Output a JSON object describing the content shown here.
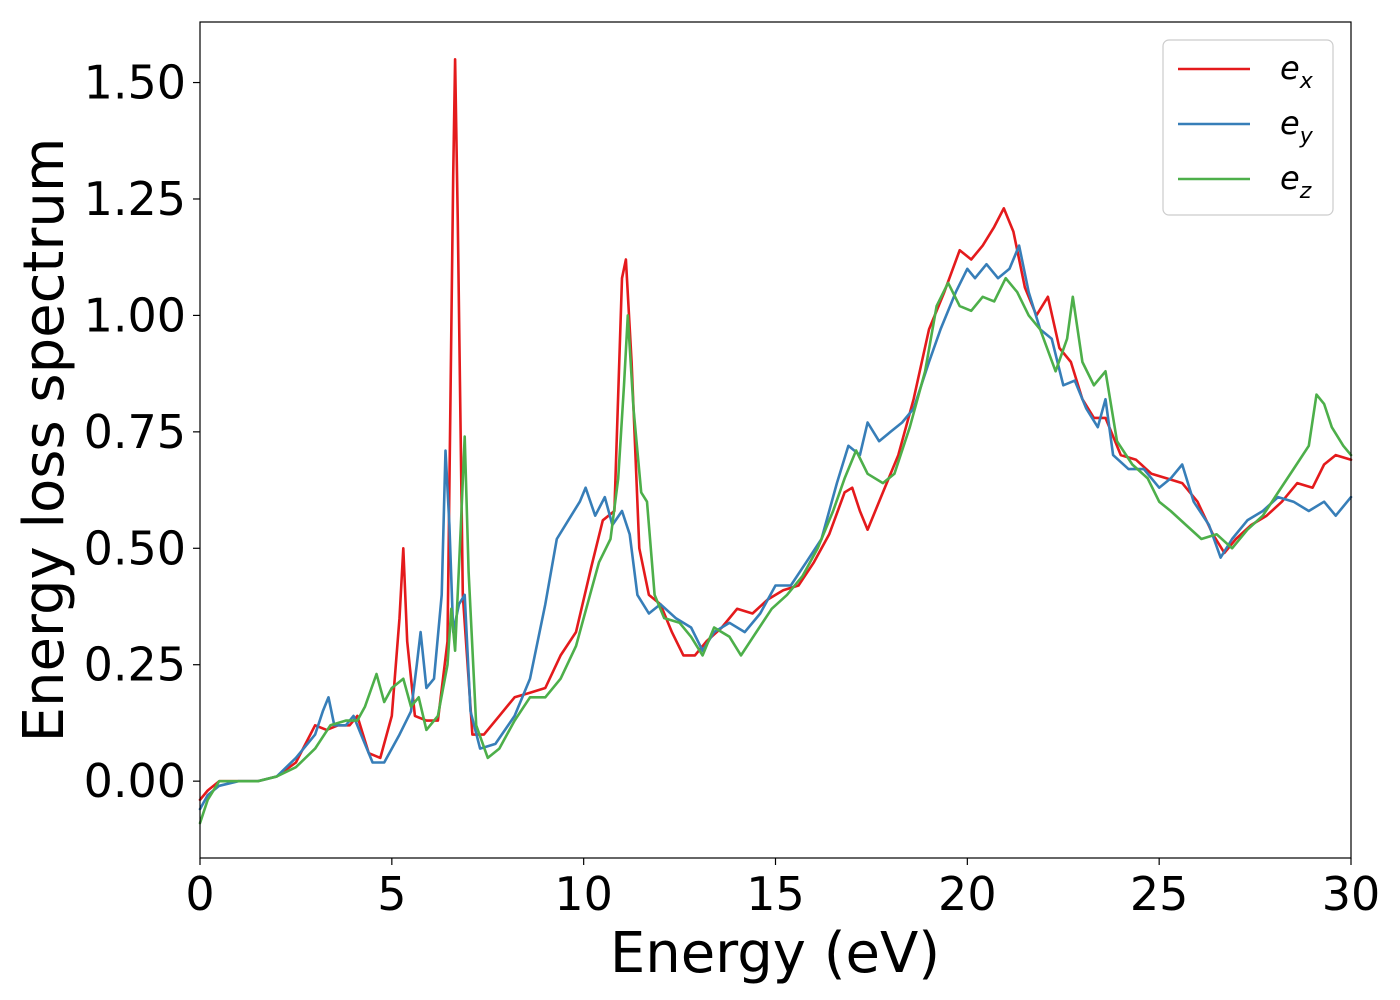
{
  "chart_data": {
    "type": "line",
    "title": "",
    "xlabel": "Energy (eV)",
    "ylabel": "Energy loss spectrum",
    "xlim": [
      0,
      30
    ],
    "ylim": [
      -0.165,
      1.63
    ],
    "xticks": [
      0,
      5,
      10,
      15,
      20,
      25,
      30
    ],
    "xtick_labels": [
      "0",
      "5",
      "10",
      "15",
      "20",
      "25",
      "30"
    ],
    "yticks": [
      0,
      0.25,
      0.5,
      0.75,
      1.0,
      1.25,
      1.5
    ],
    "ytick_labels": [
      "0.00",
      "0.25",
      "0.50",
      "0.75",
      "1.00",
      "1.25",
      "1.50"
    ],
    "grid": false,
    "legend_position": "top-right",
    "series": [
      {
        "name": "e",
        "subscript": "x",
        "color": "#e41a1c",
        "points": [
          [
            0,
            -0.04
          ],
          [
            0.2,
            -0.02
          ],
          [
            0.5,
            0.0
          ],
          [
            1.0,
            0.0
          ],
          [
            1.5,
            0.0
          ],
          [
            2.0,
            0.01
          ],
          [
            2.5,
            0.04
          ],
          [
            3.0,
            0.12
          ],
          [
            3.3,
            0.11
          ],
          [
            3.6,
            0.12
          ],
          [
            3.9,
            0.12
          ],
          [
            4.1,
            0.14
          ],
          [
            4.4,
            0.06
          ],
          [
            4.7,
            0.05
          ],
          [
            5.0,
            0.14
          ],
          [
            5.2,
            0.35
          ],
          [
            5.3,
            0.5
          ],
          [
            5.4,
            0.3
          ],
          [
            5.6,
            0.14
          ],
          [
            5.9,
            0.13
          ],
          [
            6.2,
            0.13
          ],
          [
            6.45,
            0.3
          ],
          [
            6.6,
            1.3
          ],
          [
            6.65,
            1.55
          ],
          [
            6.72,
            1.2
          ],
          [
            6.85,
            0.4
          ],
          [
            7.1,
            0.1
          ],
          [
            7.4,
            0.1
          ],
          [
            7.8,
            0.14
          ],
          [
            8.2,
            0.18
          ],
          [
            8.6,
            0.19
          ],
          [
            9.0,
            0.2
          ],
          [
            9.4,
            0.27
          ],
          [
            9.8,
            0.32
          ],
          [
            10.2,
            0.46
          ],
          [
            10.5,
            0.56
          ],
          [
            10.8,
            0.58
          ],
          [
            11.0,
            1.08
          ],
          [
            11.1,
            1.12
          ],
          [
            11.25,
            0.9
          ],
          [
            11.45,
            0.5
          ],
          [
            11.7,
            0.4
          ],
          [
            12.0,
            0.38
          ],
          [
            12.3,
            0.32
          ],
          [
            12.6,
            0.27
          ],
          [
            12.9,
            0.27
          ],
          [
            13.2,
            0.3
          ],
          [
            13.6,
            0.33
          ],
          [
            14.0,
            0.37
          ],
          [
            14.4,
            0.36
          ],
          [
            14.8,
            0.39
          ],
          [
            15.2,
            0.41
          ],
          [
            15.6,
            0.42
          ],
          [
            16.0,
            0.47
          ],
          [
            16.4,
            0.53
          ],
          [
            16.8,
            0.62
          ],
          [
            17.0,
            0.63
          ],
          [
            17.2,
            0.58
          ],
          [
            17.4,
            0.54
          ],
          [
            17.8,
            0.62
          ],
          [
            18.2,
            0.7
          ],
          [
            18.6,
            0.82
          ],
          [
            19.0,
            0.97
          ],
          [
            19.4,
            1.05
          ],
          [
            19.8,
            1.14
          ],
          [
            20.1,
            1.12
          ],
          [
            20.4,
            1.15
          ],
          [
            20.7,
            1.19
          ],
          [
            20.95,
            1.23
          ],
          [
            21.2,
            1.18
          ],
          [
            21.5,
            1.06
          ],
          [
            21.8,
            1.0
          ],
          [
            22.1,
            1.04
          ],
          [
            22.4,
            0.93
          ],
          [
            22.7,
            0.9
          ],
          [
            23.0,
            0.82
          ],
          [
            23.3,
            0.78
          ],
          [
            23.6,
            0.78
          ],
          [
            24.0,
            0.7
          ],
          [
            24.4,
            0.69
          ],
          [
            24.8,
            0.66
          ],
          [
            25.2,
            0.65
          ],
          [
            25.6,
            0.64
          ],
          [
            26.0,
            0.6
          ],
          [
            26.4,
            0.53
          ],
          [
            26.7,
            0.49
          ],
          [
            27.0,
            0.52
          ],
          [
            27.4,
            0.55
          ],
          [
            27.8,
            0.57
          ],
          [
            28.2,
            0.6
          ],
          [
            28.6,
            0.64
          ],
          [
            29.0,
            0.63
          ],
          [
            29.3,
            0.68
          ],
          [
            29.6,
            0.7
          ],
          [
            30.0,
            0.69
          ]
        ]
      },
      {
        "name": "e",
        "subscript": "y",
        "color": "#377eb8",
        "points": [
          [
            0,
            -0.06
          ],
          [
            0.2,
            -0.03
          ],
          [
            0.5,
            -0.01
          ],
          [
            1.0,
            0.0
          ],
          [
            1.5,
            0.0
          ],
          [
            2.0,
            0.01
          ],
          [
            2.5,
            0.05
          ],
          [
            3.0,
            0.1
          ],
          [
            3.2,
            0.15
          ],
          [
            3.35,
            0.18
          ],
          [
            3.5,
            0.12
          ],
          [
            3.8,
            0.12
          ],
          [
            4.0,
            0.14
          ],
          [
            4.2,
            0.1
          ],
          [
            4.5,
            0.04
          ],
          [
            4.8,
            0.04
          ],
          [
            5.2,
            0.1
          ],
          [
            5.5,
            0.15
          ],
          [
            5.65,
            0.25
          ],
          [
            5.75,
            0.32
          ],
          [
            5.9,
            0.2
          ],
          [
            6.1,
            0.22
          ],
          [
            6.3,
            0.4
          ],
          [
            6.4,
            0.71
          ],
          [
            6.5,
            0.55
          ],
          [
            6.6,
            0.32
          ],
          [
            6.75,
            0.38
          ],
          [
            6.9,
            0.4
          ],
          [
            7.05,
            0.15
          ],
          [
            7.3,
            0.07
          ],
          [
            7.7,
            0.08
          ],
          [
            8.2,
            0.14
          ],
          [
            8.6,
            0.22
          ],
          [
            9.0,
            0.38
          ],
          [
            9.3,
            0.52
          ],
          [
            9.6,
            0.56
          ],
          [
            9.9,
            0.6
          ],
          [
            10.05,
            0.63
          ],
          [
            10.3,
            0.57
          ],
          [
            10.55,
            0.61
          ],
          [
            10.75,
            0.55
          ],
          [
            11.0,
            0.58
          ],
          [
            11.2,
            0.53
          ],
          [
            11.4,
            0.4
          ],
          [
            11.7,
            0.36
          ],
          [
            12.0,
            0.38
          ],
          [
            12.4,
            0.35
          ],
          [
            12.8,
            0.33
          ],
          [
            13.1,
            0.28
          ],
          [
            13.4,
            0.32
          ],
          [
            13.8,
            0.34
          ],
          [
            14.2,
            0.32
          ],
          [
            14.6,
            0.36
          ],
          [
            15.0,
            0.42
          ],
          [
            15.4,
            0.42
          ],
          [
            15.8,
            0.47
          ],
          [
            16.2,
            0.52
          ],
          [
            16.6,
            0.64
          ],
          [
            16.9,
            0.72
          ],
          [
            17.2,
            0.7
          ],
          [
            17.4,
            0.77
          ],
          [
            17.7,
            0.73
          ],
          [
            18.0,
            0.75
          ],
          [
            18.3,
            0.77
          ],
          [
            18.6,
            0.8
          ],
          [
            19.0,
            0.9
          ],
          [
            19.3,
            0.97
          ],
          [
            19.7,
            1.05
          ],
          [
            20.0,
            1.1
          ],
          [
            20.2,
            1.08
          ],
          [
            20.5,
            1.11
          ],
          [
            20.8,
            1.08
          ],
          [
            21.1,
            1.1
          ],
          [
            21.35,
            1.15
          ],
          [
            21.6,
            1.05
          ],
          [
            21.9,
            0.97
          ],
          [
            22.2,
            0.95
          ],
          [
            22.5,
            0.85
          ],
          [
            22.8,
            0.86
          ],
          [
            23.1,
            0.8
          ],
          [
            23.4,
            0.76
          ],
          [
            23.6,
            0.82
          ],
          [
            23.8,
            0.7
          ],
          [
            24.2,
            0.67
          ],
          [
            24.6,
            0.67
          ],
          [
            25.0,
            0.63
          ],
          [
            25.3,
            0.65
          ],
          [
            25.6,
            0.68
          ],
          [
            25.9,
            0.6
          ],
          [
            26.3,
            0.55
          ],
          [
            26.6,
            0.48
          ],
          [
            26.9,
            0.52
          ],
          [
            27.3,
            0.56
          ],
          [
            27.7,
            0.58
          ],
          [
            28.1,
            0.61
          ],
          [
            28.5,
            0.6
          ],
          [
            28.9,
            0.58
          ],
          [
            29.3,
            0.6
          ],
          [
            29.6,
            0.57
          ],
          [
            30.0,
            0.61
          ]
        ]
      },
      {
        "name": "e",
        "subscript": "z",
        "color": "#4daf4a",
        "points": [
          [
            0,
            -0.09
          ],
          [
            0.2,
            -0.04
          ],
          [
            0.5,
            0.0
          ],
          [
            0.8,
            0.0
          ],
          [
            1.5,
            0.0
          ],
          [
            2.0,
            0.01
          ],
          [
            2.5,
            0.03
          ],
          [
            3.0,
            0.07
          ],
          [
            3.4,
            0.12
          ],
          [
            3.8,
            0.13
          ],
          [
            4.1,
            0.13
          ],
          [
            4.3,
            0.16
          ],
          [
            4.6,
            0.23
          ],
          [
            4.8,
            0.17
          ],
          [
            5.0,
            0.2
          ],
          [
            5.3,
            0.22
          ],
          [
            5.5,
            0.16
          ],
          [
            5.7,
            0.18
          ],
          [
            5.9,
            0.11
          ],
          [
            6.2,
            0.14
          ],
          [
            6.45,
            0.25
          ],
          [
            6.55,
            0.37
          ],
          [
            6.65,
            0.28
          ],
          [
            6.8,
            0.55
          ],
          [
            6.9,
            0.74
          ],
          [
            7.0,
            0.45
          ],
          [
            7.2,
            0.12
          ],
          [
            7.5,
            0.05
          ],
          [
            7.8,
            0.07
          ],
          [
            8.2,
            0.13
          ],
          [
            8.6,
            0.18
          ],
          [
            9.0,
            0.18
          ],
          [
            9.4,
            0.22
          ],
          [
            9.8,
            0.29
          ],
          [
            10.2,
            0.41
          ],
          [
            10.4,
            0.47
          ],
          [
            10.7,
            0.52
          ],
          [
            10.9,
            0.65
          ],
          [
            11.05,
            0.85
          ],
          [
            11.15,
            1.0
          ],
          [
            11.3,
            0.8
          ],
          [
            11.5,
            0.62
          ],
          [
            11.65,
            0.6
          ],
          [
            11.85,
            0.4
          ],
          [
            12.1,
            0.35
          ],
          [
            12.5,
            0.34
          ],
          [
            12.8,
            0.31
          ],
          [
            13.1,
            0.27
          ],
          [
            13.4,
            0.33
          ],
          [
            13.8,
            0.31
          ],
          [
            14.1,
            0.27
          ],
          [
            14.5,
            0.32
          ],
          [
            14.9,
            0.37
          ],
          [
            15.3,
            0.4
          ],
          [
            15.7,
            0.44
          ],
          [
            16.1,
            0.5
          ],
          [
            16.5,
            0.58
          ],
          [
            16.8,
            0.65
          ],
          [
            17.1,
            0.71
          ],
          [
            17.4,
            0.66
          ],
          [
            17.8,
            0.64
          ],
          [
            18.1,
            0.66
          ],
          [
            18.5,
            0.76
          ],
          [
            18.9,
            0.88
          ],
          [
            19.2,
            1.02
          ],
          [
            19.5,
            1.07
          ],
          [
            19.8,
            1.02
          ],
          [
            20.1,
            1.01
          ],
          [
            20.4,
            1.04
          ],
          [
            20.7,
            1.03
          ],
          [
            21.0,
            1.08
          ],
          [
            21.3,
            1.05
          ],
          [
            21.6,
            1.0
          ],
          [
            21.9,
            0.97
          ],
          [
            22.3,
            0.88
          ],
          [
            22.6,
            0.95
          ],
          [
            22.75,
            1.04
          ],
          [
            23.0,
            0.9
          ],
          [
            23.3,
            0.85
          ],
          [
            23.6,
            0.88
          ],
          [
            23.9,
            0.73
          ],
          [
            24.3,
            0.68
          ],
          [
            24.7,
            0.65
          ],
          [
            25.0,
            0.6
          ],
          [
            25.3,
            0.58
          ],
          [
            25.7,
            0.55
          ],
          [
            26.1,
            0.52
          ],
          [
            26.5,
            0.53
          ],
          [
            26.9,
            0.5
          ],
          [
            27.3,
            0.54
          ],
          [
            27.7,
            0.57
          ],
          [
            28.1,
            0.62
          ],
          [
            28.5,
            0.67
          ],
          [
            28.9,
            0.72
          ],
          [
            29.1,
            0.83
          ],
          [
            29.3,
            0.81
          ],
          [
            29.5,
            0.76
          ],
          [
            29.8,
            0.72
          ],
          [
            30.0,
            0.7
          ]
        ]
      }
    ]
  }
}
